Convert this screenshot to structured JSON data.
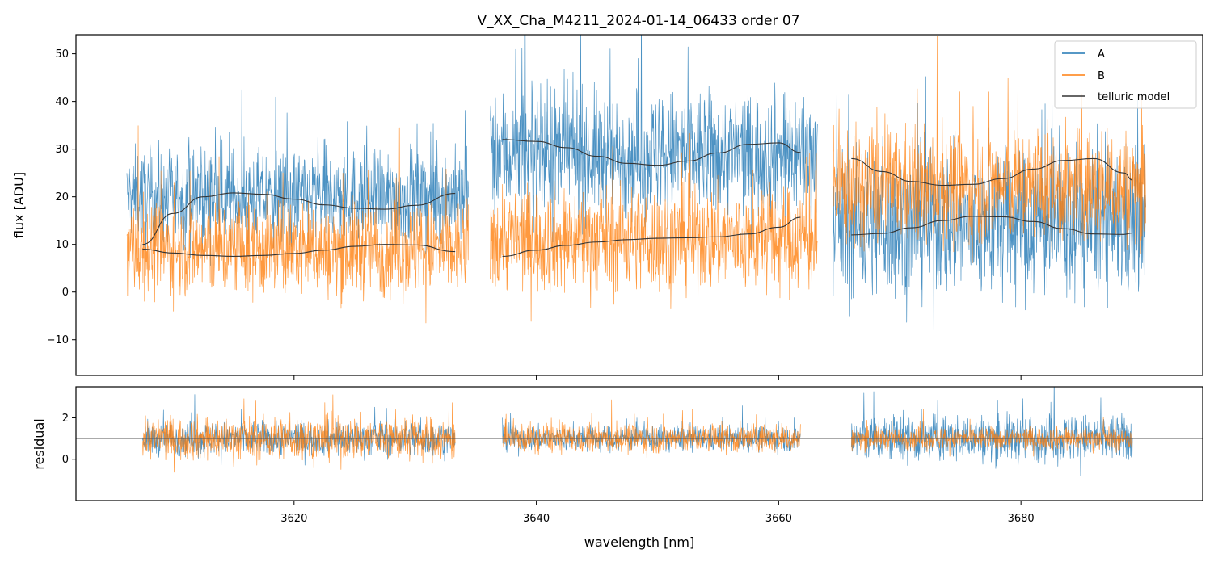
{
  "chart_data": {
    "type": "line",
    "title": "V_XX_Cha_M4211_2024-01-14_06433  order 07",
    "xlabel": "wavelength [nm]",
    "xlim": [
      3602,
      3695
    ],
    "x_ticks": [
      3620,
      3640,
      3660,
      3680
    ],
    "x_tick_labels": [
      "3620",
      "3640",
      "3660",
      "3680"
    ],
    "legend": {
      "position": "top-right",
      "entries": [
        {
          "label": "A",
          "color": "#1f77b4"
        },
        {
          "label": "B",
          "color": "#ff7f0e"
        },
        {
          "label": "telluric model",
          "color": "#333333"
        }
      ]
    },
    "colors": {
      "A": "#1f77b4",
      "B": "#ff7f0e",
      "model": "#333333",
      "reference": "#555555"
    },
    "panels": [
      {
        "name": "flux",
        "ylabel": "flux [ADU]",
        "ylim": [
          -17.5,
          54
        ],
        "y_ticks": [
          -10,
          0,
          10,
          20,
          30,
          40,
          50
        ],
        "y_tick_labels": [
          "−10",
          "0",
          "10",
          "20",
          "30",
          "40",
          "50"
        ],
        "segments": [
          {
            "x_range": [
              3606.2,
              3634.4
            ],
            "A_level": 20,
            "A_noise": 9,
            "B_level": 9,
            "B_noise": 9
          },
          {
            "x_range": [
              3636.2,
              3663.2
            ],
            "A_level": 29,
            "A_noise": 12,
            "B_level": 11,
            "B_noise": 10
          },
          {
            "x_range": [
              3664.5,
              3690.3
            ],
            "A_level": 14,
            "A_noise": 14,
            "B_level": 22,
            "B_noise": 11
          }
        ],
        "model_curves": [
          {
            "series": "A",
            "x": [
              3607.5,
              3610,
              3612.5,
              3615,
              3617.5,
              3620,
              3622.5,
              3625,
              3627.5,
              3630,
              3633.3
            ],
            "y": [
              10,
              16.5,
              20,
              20.8,
              20.5,
              19.5,
              18.3,
              17.6,
              17.4,
              18.2,
              20.7
            ]
          },
          {
            "series": "B",
            "x": [
              3607.5,
              3610,
              3612.5,
              3615,
              3617.5,
              3620,
              3622.5,
              3625,
              3627.5,
              3630,
              3633.3
            ],
            "y": [
              9,
              8.2,
              7.7,
              7.5,
              7.7,
              8.1,
              8.8,
              9.6,
              10,
              9.9,
              8.5
            ]
          },
          {
            "series": "A",
            "x": [
              3637.2,
              3640,
              3642.5,
              3645,
              3647.5,
              3650,
              3652.5,
              3655,
              3657.5,
              3660,
              3661.8
            ],
            "y": [
              32,
              31.6,
              30.3,
              28.5,
              27,
              26.6,
              27.5,
              29.2,
              31,
              31.3,
              29.3
            ]
          },
          {
            "series": "B",
            "x": [
              3637.2,
              3640,
              3642.5,
              3645,
              3647.5,
              3650,
              3652.5,
              3655,
              3657.5,
              3660,
              3661.8
            ],
            "y": [
              7.5,
              8.8,
              9.8,
              10.5,
              11,
              11.3,
              11.4,
              11.6,
              12.2,
              13.6,
              15.7
            ]
          },
          {
            "series": "A",
            "x": [
              3666,
              3668.5,
              3671,
              3673.5,
              3676,
              3678.5,
              3681,
              3683.5,
              3686,
              3688.5,
              3689.2
            ],
            "y": [
              28,
              25.3,
              23.2,
              22.4,
              22.6,
              23.8,
              25.8,
              27.6,
              28,
              25,
              23.5
            ]
          },
          {
            "series": "B",
            "x": [
              3666,
              3668.5,
              3671,
              3673.5,
              3676,
              3678.5,
              3681,
              3683.5,
              3686,
              3688.5,
              3689.2
            ],
            "y": [
              12,
              12.3,
              13.5,
              15,
              15.9,
              15.8,
              14.8,
              13.3,
              12.2,
              12.1,
              12.4
            ]
          }
        ]
      },
      {
        "name": "residual",
        "ylabel": "residual",
        "ylim": [
          -2,
          3.5
        ],
        "y_ticks": [
          0,
          2
        ],
        "y_tick_labels": [
          "0",
          "2"
        ],
        "reference_line": 1,
        "segments": [
          {
            "x_range": [
              3607.5,
              3633.3
            ],
            "A_level": 1,
            "A_noise": 0.75,
            "B_level": 1,
            "B_noise": 0.95
          },
          {
            "x_range": [
              3637.2,
              3661.8
            ],
            "A_level": 1,
            "A_noise": 0.55,
            "B_level": 1,
            "B_noise": 0.65
          },
          {
            "x_range": [
              3666,
              3689.2
            ],
            "A_level": 1,
            "A_noise": 1.05,
            "B_level": 1,
            "B_noise": 0.5
          }
        ]
      }
    ]
  }
}
